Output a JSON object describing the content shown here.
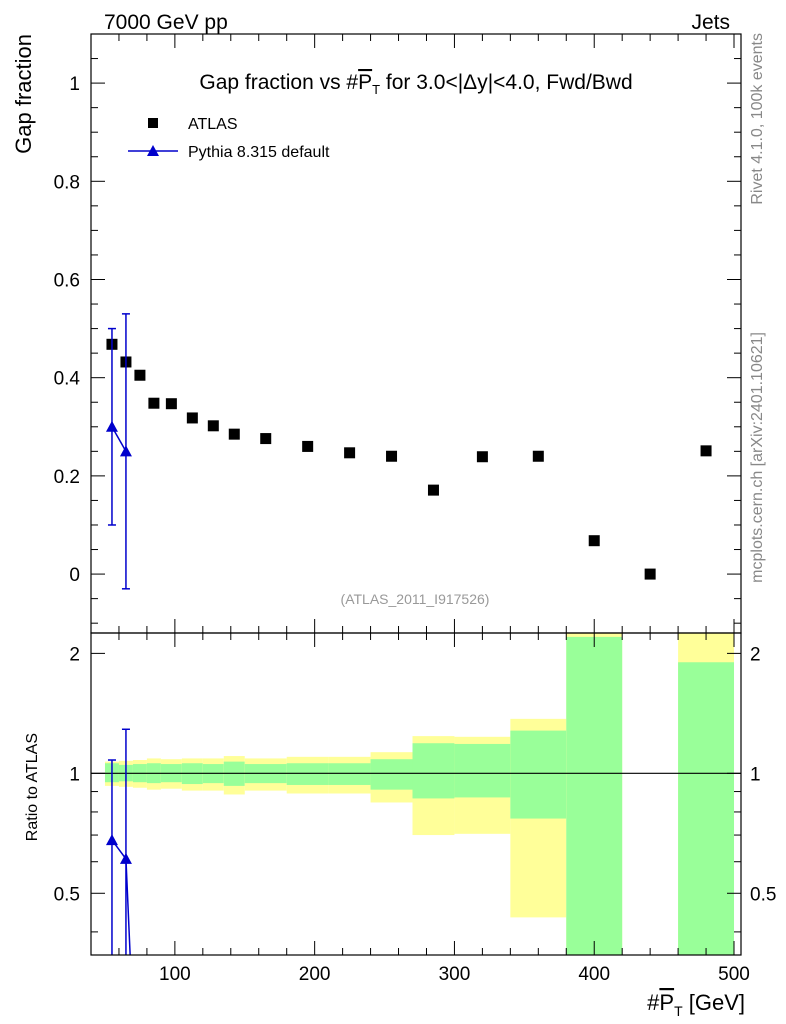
{
  "header": {
    "left": "7000 GeV pp",
    "right": "Jets"
  },
  "side_labels": {
    "rivet": "Rivet 4.1.0,  100k events",
    "mcplots": "mcplots.cern.ch [arXiv:2401.10621]"
  },
  "chart_data": [
    {
      "type": "scatter",
      "panel": "main",
      "title": "Gap fraction vs #P̅T for 3.0<|Δy|<4.0, Fwd/Bwd",
      "title_parts": {
        "prefix": "Gap fraction vs #",
        "symbol": "P",
        "subscript": "T",
        "suffix": " for 3.0<|Δy|<4.0, Fwd/Bwd"
      },
      "ylabel": "Gap fraction",
      "xlim": [
        40,
        505
      ],
      "ylim": [
        -0.12,
        1.1
      ],
      "yticks": [
        0,
        0.2,
        0.4,
        0.6,
        0.8,
        1
      ],
      "ytick_labels": [
        "0",
        "0.2",
        "0.4",
        "0.6",
        "0.8",
        "1"
      ],
      "analysis_label": "(ATLAS_2011_I917526)",
      "legend": [
        {
          "name": "ATLAS",
          "marker": "square",
          "color": "#000000"
        },
        {
          "name": "Pythia 8.315 default",
          "marker": "triangle",
          "color": "#0000cc"
        }
      ],
      "series": [
        {
          "name": "ATLAS",
          "x": [
            55,
            65,
            75,
            85,
            97.5,
            112.5,
            127.5,
            142.5,
            165,
            195,
            225,
            255,
            285,
            320,
            360,
            400,
            440,
            480
          ],
          "y": [
            0.468,
            0.432,
            0.405,
            0.348,
            0.347,
            0.318,
            0.302,
            0.285,
            0.276,
            0.26,
            0.247,
            0.24,
            0.171,
            0.239,
            0.24,
            0.068,
            0.0,
            0.251
          ]
        },
        {
          "name": "Pythia 8.315 default",
          "x": [
            55,
            65
          ],
          "y": [
            0.3,
            0.25
          ],
          "yerr_low": [
            0.2,
            0.28
          ],
          "yerr_high": [
            0.2,
            0.28
          ]
        }
      ]
    },
    {
      "type": "line",
      "panel": "ratio",
      "ylabel": "Ratio to ATLAS",
      "xlabel": "#P̅T [GeV]",
      "xlabel_parts": {
        "prefix": "#",
        "symbol": "P",
        "subscript": "T",
        "suffix": " [GeV]"
      },
      "xlim": [
        40,
        505
      ],
      "ylim": [
        0.35,
        2.25
      ],
      "yticks": [
        0.5,
        1,
        2
      ],
      "ytick_labels": [
        "0.5",
        "1",
        "2"
      ],
      "xticks": [
        100,
        200,
        300,
        400,
        500
      ],
      "xtick_labels": [
        "100",
        "200",
        "300",
        "400",
        "500"
      ],
      "bands": [
        {
          "x_lo": 50,
          "x_hi": 60,
          "green": [
            0.95,
            1.06
          ],
          "yellow": [
            0.93,
            1.07
          ]
        },
        {
          "x_lo": 60,
          "x_hi": 70,
          "green": [
            0.955,
            1.05
          ],
          "yellow": [
            0.925,
            1.075
          ]
        },
        {
          "x_lo": 70,
          "x_hi": 80,
          "green": [
            0.95,
            1.055
          ],
          "yellow": [
            0.92,
            1.08
          ]
        },
        {
          "x_lo": 80,
          "x_hi": 90,
          "green": [
            0.945,
            1.06
          ],
          "yellow": [
            0.91,
            1.09
          ]
        },
        {
          "x_lo": 90,
          "x_hi": 105,
          "green": [
            0.95,
            1.055
          ],
          "yellow": [
            0.915,
            1.085
          ]
        },
        {
          "x_lo": 105,
          "x_hi": 120,
          "green": [
            0.94,
            1.06
          ],
          "yellow": [
            0.905,
            1.09
          ]
        },
        {
          "x_lo": 120,
          "x_hi": 135,
          "green": [
            0.945,
            1.055
          ],
          "yellow": [
            0.905,
            1.09
          ]
        },
        {
          "x_lo": 135,
          "x_hi": 150,
          "green": [
            0.93,
            1.07
          ],
          "yellow": [
            0.885,
            1.105
          ]
        },
        {
          "x_lo": 150,
          "x_hi": 180,
          "green": [
            0.945,
            1.055
          ],
          "yellow": [
            0.905,
            1.09
          ]
        },
        {
          "x_lo": 180,
          "x_hi": 210,
          "green": [
            0.935,
            1.06
          ],
          "yellow": [
            0.89,
            1.1
          ]
        },
        {
          "x_lo": 210,
          "x_hi": 240,
          "green": [
            0.935,
            1.06
          ],
          "yellow": [
            0.89,
            1.1
          ]
        },
        {
          "x_lo": 240,
          "x_hi": 270,
          "green": [
            0.91,
            1.085
          ],
          "yellow": [
            0.845,
            1.13
          ]
        },
        {
          "x_lo": 270,
          "x_hi": 300,
          "green": [
            0.865,
            1.19
          ],
          "yellow": [
            0.7,
            1.24
          ]
        },
        {
          "x_lo": 300,
          "x_hi": 340,
          "green": [
            0.87,
            1.185
          ],
          "yellow": [
            0.705,
            1.235
          ]
        },
        {
          "x_lo": 340,
          "x_hi": 380,
          "green": [
            0.77,
            1.28
          ],
          "yellow": [
            0.435,
            1.37
          ]
        },
        {
          "x_lo": 380,
          "x_hi": 420,
          "green": [
            0.35,
            2.2
          ],
          "yellow": [
            0.35,
            2.25
          ]
        },
        {
          "x_lo": 460,
          "x_hi": 500,
          "green": [
            0.35,
            1.9
          ],
          "yellow": [
            0.35,
            2.25
          ]
        }
      ],
      "reference_line": 1,
      "series": [
        {
          "name": "Pythia 8.315 default",
          "x": [
            55,
            65,
            68
          ],
          "y": [
            0.68,
            0.61,
            0.35
          ],
          "markers": [
            true,
            true,
            false
          ],
          "yerr_low": [
            0.33,
            0.26,
            0
          ],
          "yerr_high": [
            0.4,
            0.68,
            0
          ]
        }
      ]
    }
  ]
}
